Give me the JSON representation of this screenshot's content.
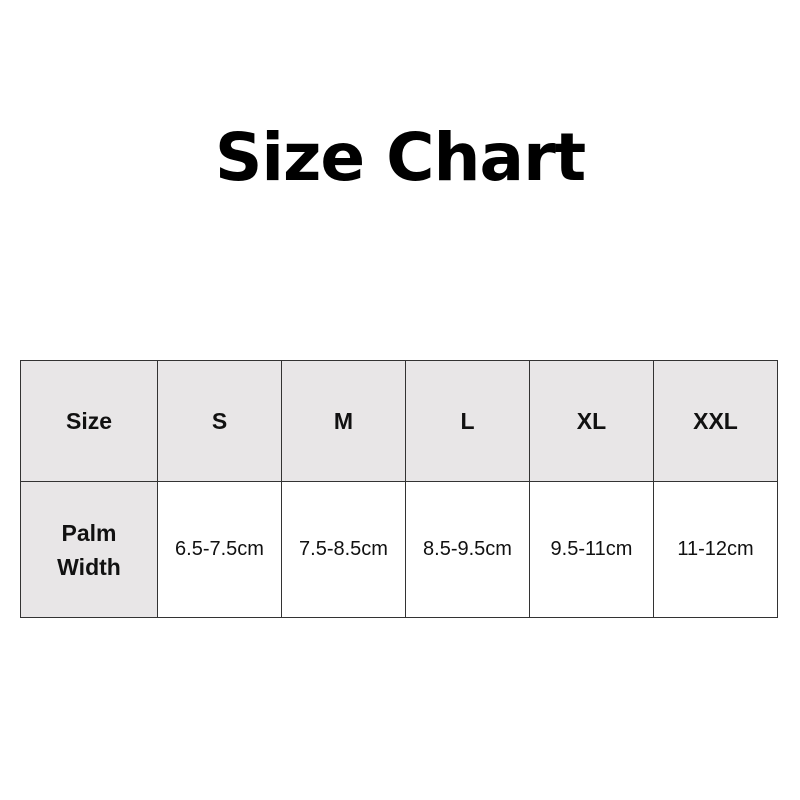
{
  "title": "Size Chart",
  "table": {
    "header": [
      "Size",
      "S",
      "M",
      "L",
      "XL",
      "XXL"
    ],
    "row_label": [
      "Palm",
      "Width"
    ],
    "values": [
      "6.5-7.5cm",
      "7.5-8.5cm",
      "8.5-9.5cm",
      "9.5-11cm",
      "11-12cm"
    ]
  },
  "colors": {
    "header_bg": "#e8e6e7",
    "border": "#333333"
  }
}
